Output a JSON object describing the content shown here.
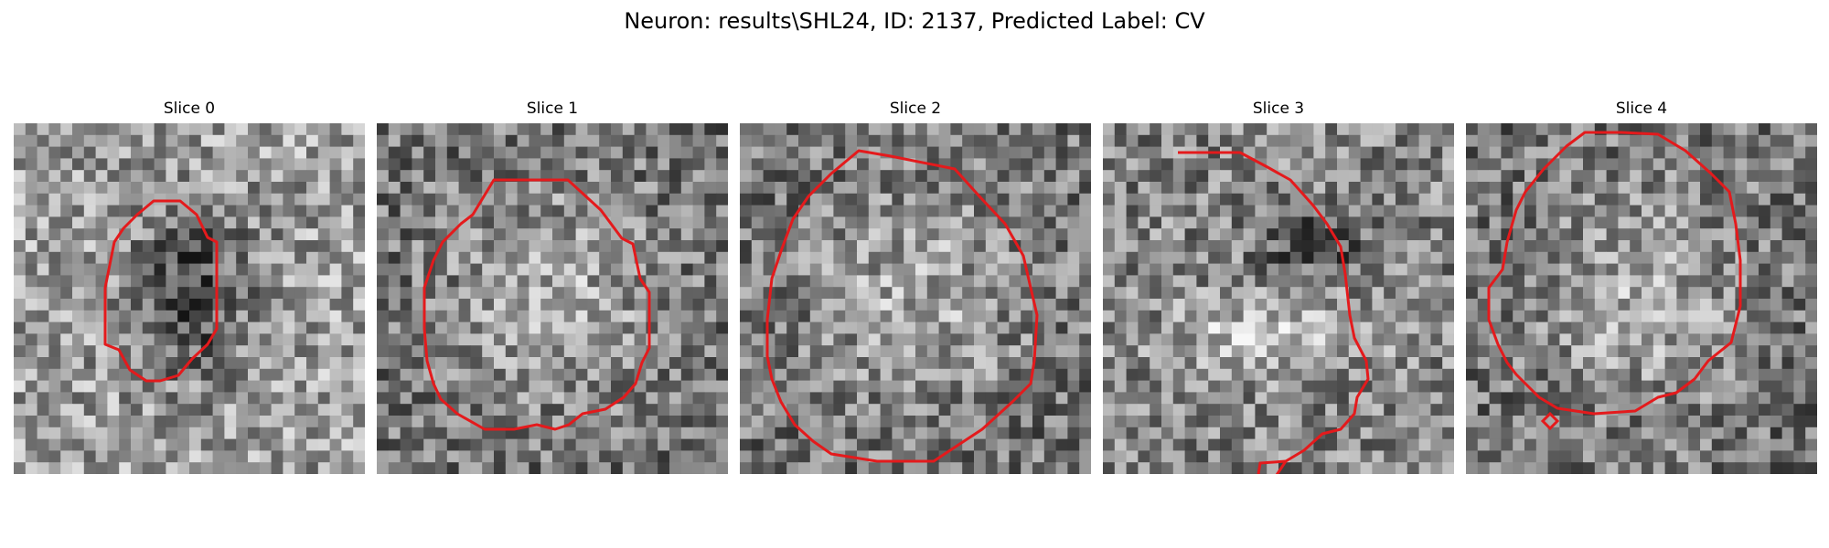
{
  "figure": {
    "title": "Neuron: results\\SHL24, ID: 2137, Predicted Label: CV",
    "contour_color": "#e41a1c",
    "colormap": "gray"
  },
  "panels": [
    {
      "title": "Slice 0",
      "tone": "dark-center"
    },
    {
      "title": "Slice 1",
      "tone": "bright-center"
    },
    {
      "title": "Slice 2",
      "tone": "bright-center"
    },
    {
      "title": "Slice 3",
      "tone": "bright-band"
    },
    {
      "title": "Slice 4",
      "tone": "bright-center"
    }
  ]
}
